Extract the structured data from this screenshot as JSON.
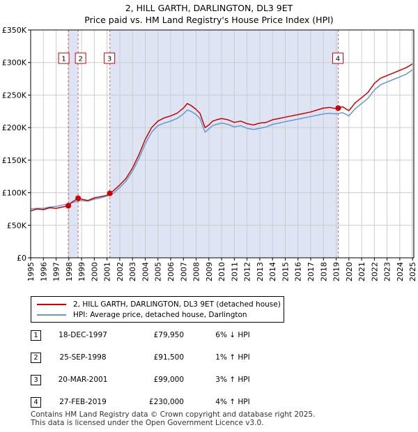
{
  "chart_data": {
    "type": "line",
    "title": "2, HILL GARTH, DARLINGTON, DL3 9ET",
    "subtitle": "Price paid vs. HM Land Registry's House Price Index (HPI)",
    "xlabel": "",
    "ylabel": "",
    "xlim": [
      1995,
      2025.1
    ],
    "ylim": [
      0,
      350000
    ],
    "x_ticks": [
      "1995",
      "1996",
      "1997",
      "1998",
      "1999",
      "2000",
      "2001",
      "2002",
      "2003",
      "2004",
      "2005",
      "2006",
      "2007",
      "2008",
      "2009",
      "2010",
      "2011",
      "2012",
      "2013",
      "2014",
      "2015",
      "2016",
      "2017",
      "2018",
      "2019",
      "2020",
      "2021",
      "2022",
      "2023",
      "2024",
      "2025"
    ],
    "y_ticks": [
      {
        "value": 0,
        "label": "£0"
      },
      {
        "value": 50000,
        "label": "£50K"
      },
      {
        "value": 100000,
        "label": "£100K"
      },
      {
        "value": 150000,
        "label": "£150K"
      },
      {
        "value": 200000,
        "label": "£200K"
      },
      {
        "value": 250000,
        "label": "£250K"
      },
      {
        "value": 300000,
        "label": "£300K"
      },
      {
        "value": 350000,
        "label": "£350K"
      }
    ],
    "grid": true,
    "series": [
      {
        "name": "2, HILL GARTH, DARLINGTON, DL3 9ET (detached house)",
        "color": "#cc0000",
        "x": [
          1995.0,
          1995.5,
          1996.0,
          1996.5,
          1997.0,
          1997.5,
          1997.96,
          1998.2,
          1998.73,
          1999.0,
          1999.5,
          2000.0,
          2000.5,
          2001.0,
          2001.22,
          2001.5,
          2002.0,
          2002.5,
          2003.0,
          2003.5,
          2004.0,
          2004.5,
          2005.0,
          2005.5,
          2006.0,
          2006.5,
          2007.0,
          2007.3,
          2007.6,
          2008.0,
          2008.3,
          2008.7,
          2009.0,
          2009.3,
          2009.6,
          2010.0,
          2010.5,
          2011.0,
          2011.5,
          2012.0,
          2012.5,
          2013.0,
          2013.5,
          2014.0,
          2014.5,
          2015.0,
          2015.5,
          2016.0,
          2016.5,
          2017.0,
          2017.5,
          2018.0,
          2018.5,
          2019.0,
          2019.16,
          2019.5,
          2020.0,
          2020.5,
          2021.0,
          2021.5,
          2022.0,
          2022.5,
          2023.0,
          2023.5,
          2024.0,
          2024.5,
          2025.0
        ],
        "values": [
          72000,
          75000,
          74000,
          77000,
          76000,
          78000,
          79950,
          85000,
          91500,
          90000,
          88000,
          92000,
          94000,
          96000,
          99000,
          103000,
          112000,
          122000,
          138000,
          158000,
          182000,
          200000,
          210000,
          215000,
          218000,
          222000,
          230000,
          237000,
          234000,
          228000,
          222000,
          200000,
          204000,
          210000,
          212000,
          214000,
          212000,
          208000,
          210000,
          206000,
          204000,
          207000,
          208000,
          212000,
          214000,
          216000,
          218000,
          220000,
          222000,
          224000,
          227000,
          230000,
          231000,
          229000,
          230000,
          232000,
          226000,
          238000,
          246000,
          254000,
          268000,
          276000,
          280000,
          284000,
          288000,
          292000,
          298000
        ]
      },
      {
        "name": "HPI: Average price, detached house, Darlington",
        "color": "#6699cc",
        "x": [
          1995.0,
          1995.5,
          1996.0,
          1996.5,
          1997.0,
          1997.5,
          1998.0,
          1998.5,
          1999.0,
          1999.5,
          2000.0,
          2000.5,
          2001.0,
          2001.5,
          2002.0,
          2002.5,
          2003.0,
          2003.5,
          2004.0,
          2004.5,
          2005.0,
          2005.5,
          2006.0,
          2006.5,
          2007.0,
          2007.3,
          2007.6,
          2008.0,
          2008.3,
          2008.7,
          2009.0,
          2009.3,
          2009.6,
          2010.0,
          2010.5,
          2011.0,
          2011.5,
          2012.0,
          2012.5,
          2013.0,
          2013.5,
          2014.0,
          2014.5,
          2015.0,
          2015.5,
          2016.0,
          2016.5,
          2017.0,
          2017.5,
          2018.0,
          2018.5,
          2019.0,
          2019.5,
          2020.0,
          2020.5,
          2021.0,
          2021.5,
          2022.0,
          2022.5,
          2023.0,
          2023.5,
          2024.0,
          2024.5,
          2025.0
        ],
        "values": [
          75000,
          76000,
          76000,
          78000,
          79000,
          81000,
          83000,
          86000,
          88000,
          87000,
          90000,
          92000,
          95000,
          99000,
          108000,
          118000,
          133000,
          152000,
          175000,
          193000,
          203000,
          207000,
          210000,
          214000,
          221000,
          227000,
          225000,
          220000,
          214000,
          193000,
          198000,
          203000,
          205000,
          207000,
          205000,
          201000,
          203000,
          199000,
          197000,
          199000,
          201000,
          205000,
          207000,
          209000,
          211000,
          213000,
          215000,
          217000,
          219000,
          221000,
          222000,
          221000,
          223000,
          218000,
          229000,
          237000,
          245000,
          258000,
          266000,
          270000,
          274000,
          278000,
          282000,
          289000
        ]
      }
    ],
    "markers": [
      {
        "id": "1",
        "x": 1997.96,
        "y": 79950
      },
      {
        "id": "2",
        "x": 1998.73,
        "y": 91500
      },
      {
        "id": "3",
        "x": 2001.22,
        "y": 99000
      },
      {
        "id": "4",
        "x": 2019.16,
        "y": 230000
      }
    ],
    "shaded_ranges": [
      [
        1997.96,
        1998.73
      ],
      [
        2001.22,
        2019.16
      ]
    ]
  },
  "legend": {
    "red_label": "2, HILL GARTH, DARLINGTON, DL3 9ET (detached house)",
    "blue_label": "HPI: Average price, detached house, Darlington"
  },
  "transactions": [
    {
      "num": "1",
      "date": "18-DEC-1997",
      "price": "£79,950",
      "hpi": "6% ↓ HPI"
    },
    {
      "num": "2",
      "date": "25-SEP-1998",
      "price": "£91,500",
      "hpi": "1% ↑ HPI"
    },
    {
      "num": "3",
      "date": "20-MAR-2001",
      "price": "£99,000",
      "hpi": "3% ↑ HPI"
    },
    {
      "num": "4",
      "date": "27-FEB-2019",
      "price": "£230,000",
      "hpi": "4% ↑ HPI"
    }
  ],
  "footer": {
    "line1": "Contains HM Land Registry data © Crown copyright and database right 2025.",
    "line2": "This data is licensed under the Open Government Licence v3.0."
  }
}
